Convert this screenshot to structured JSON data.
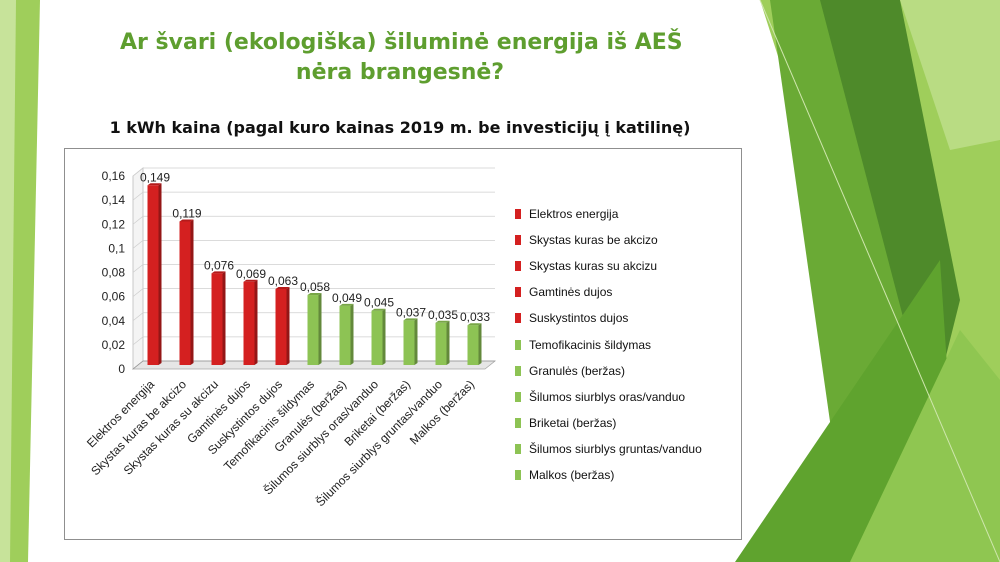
{
  "slide": {
    "title_line1": "Ar švari (ekologiška) šiluminė energija iš AEŠ",
    "title_line2": "nėra brangesnė?"
  },
  "colors": {
    "red_series": "#d42020",
    "green_series": "#8dc354",
    "title_green": "#5e9e2f",
    "deco_green_dark": "#4e8a2a",
    "deco_green_light": "#9fce5b"
  },
  "chart_data": {
    "type": "bar",
    "title": "1 kWh kaina (pagal kuro kainas 2019 m. be investicijų į katilinę)",
    "categories": [
      "Elektros energija",
      "Skystas kuras be akcizo",
      "Skystas kuras su akcizu",
      "Gamtinės dujos",
      "Suskystintos dujos",
      "Temofikacinis šildymas",
      "Granulės (beržas)",
      "Šilumos siurblys oras/vanduo",
      "Briketai (beržas)",
      "Šilumos siurblys gruntas/vanduo",
      "Malkos (beržas)"
    ],
    "values": [
      0.149,
      0.119,
      0.076,
      0.069,
      0.063,
      0.058,
      0.049,
      0.045,
      0.037,
      0.035,
      0.033
    ],
    "value_labels": [
      "0,149",
      "0,119",
      "0,076",
      "0,069",
      "0,063",
      "0,058",
      "0,049",
      "0,045",
      "0,037",
      "0,035",
      "0,033"
    ],
    "bar_colors": [
      "#d42020",
      "#d42020",
      "#d42020",
      "#d42020",
      "#d42020",
      "#8dc354",
      "#8dc354",
      "#8dc354",
      "#8dc354",
      "#8dc354",
      "#8dc354"
    ],
    "legend": [
      "Elektros energija",
      "Skystas kuras be akcizo",
      "Skystas kuras su akcizu",
      "Gamtinės dujos",
      "Suskystintos dujos",
      "Temofikacinis šildymas",
      "Granulės (beržas)",
      "Šilumos siurblys oras/vanduo",
      "Briketai (beržas)",
      "Šilumos siurblys gruntas/vanduo",
      "Malkos (beržas)"
    ],
    "ylim": [
      0,
      0.16
    ],
    "yticks": [
      0,
      0.02,
      0.04,
      0.06,
      0.08,
      0.1,
      0.12,
      0.14,
      0.16
    ],
    "ytick_labels": [
      "0",
      "0,02",
      "0,04",
      "0,06",
      "0,08",
      "0,1",
      "0,12",
      "0,14",
      "0,16"
    ],
    "grid": true,
    "legend_position": "right"
  }
}
